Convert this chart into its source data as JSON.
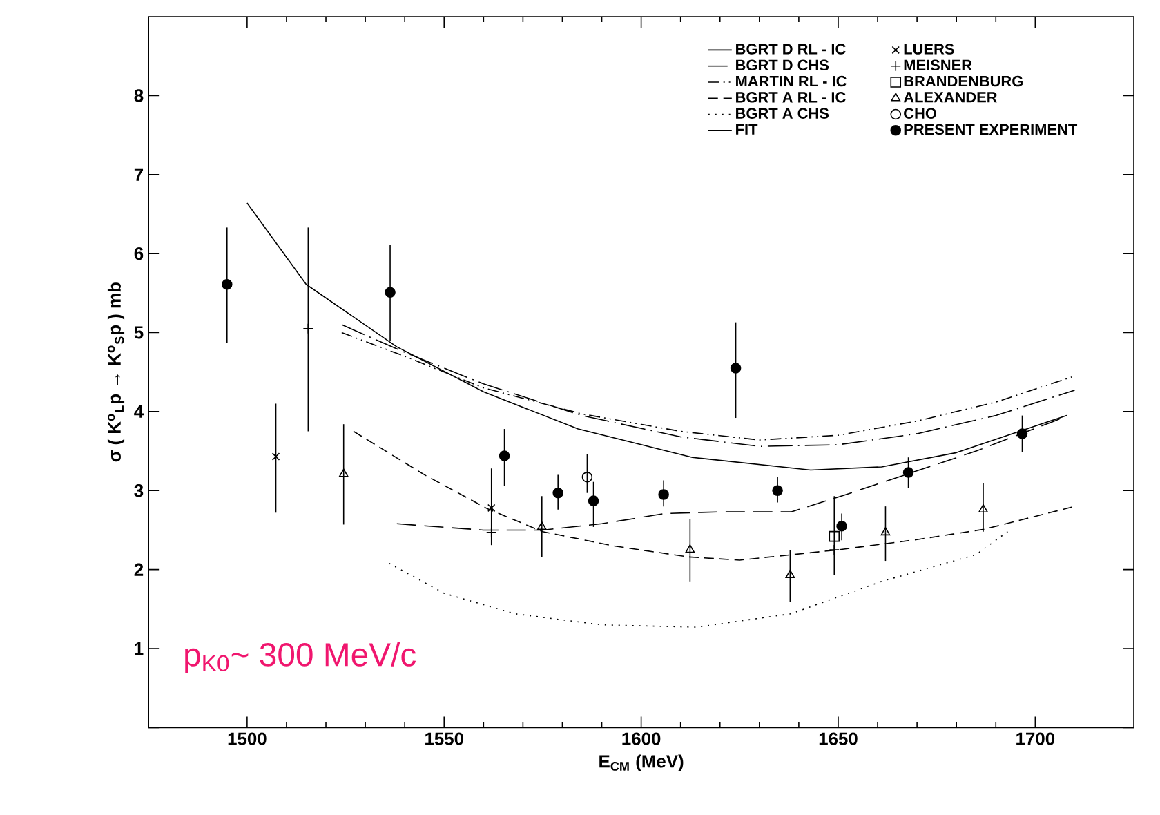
{
  "chart_data": {
    "type": "scatter",
    "xlabel": "E$_{CM}$ (MeV)",
    "ylabel": "σ ( K$^{o}$$_{L}$p → K$^{o}$$_{S}$p ) mb",
    "xlim": [
      1475,
      1725
    ],
    "ylim": [
      0,
      9
    ],
    "xticks": [
      1500,
      1550,
      1600,
      1650,
      1700
    ],
    "yticks": [
      {
        "value": 0,
        "label": null
      },
      1,
      2,
      3,
      4,
      5,
      6,
      7,
      8
    ],
    "legend": "top right",
    "grid": false,
    "annotations": [
      "p$_{K0}$~ 300 MeV/c"
    ],
    "series": [
      {
        "type": "line",
        "name": "BGRT  D   RL - IC",
        "color": "#000000",
        "line_style": "dashdot",
        "x": [
          1524,
          1540,
          1560,
          1585,
          1610,
          1630,
          1650,
          1670,
          1690,
          1710
        ],
        "values": [
          5.1,
          4.75,
          4.35,
          3.95,
          3.68,
          3.56,
          3.58,
          3.72,
          3.95,
          4.27
        ]
      },
      {
        "type": "line",
        "name": "BGRT  D   CHS",
        "color": "#000000",
        "line_style": "longdashed",
        "x": [
          1538,
          1560,
          1575,
          1590,
          1606,
          1620,
          1638,
          1652,
          1667,
          1685,
          1708
        ],
        "values": [
          2.58,
          2.5,
          2.5,
          2.58,
          2.71,
          2.73,
          2.73,
          2.95,
          3.2,
          3.5,
          3.94
        ]
      },
      {
        "type": "line",
        "name": "MARTIN    RL - IC",
        "color": "#000000",
        "line_style": "dashdotdot",
        "x": [
          1524,
          1540,
          1560,
          1585,
          1610,
          1630,
          1650,
          1670,
          1690,
          1710
        ],
        "values": [
          5.0,
          4.7,
          4.3,
          3.97,
          3.75,
          3.64,
          3.7,
          3.88,
          4.12,
          4.45
        ]
      },
      {
        "type": "line",
        "name": "BGRT  A   RL - IC",
        "color": "#000000",
        "line_style": "dashed",
        "x": [
          1527,
          1545,
          1561,
          1575,
          1593,
          1612,
          1625,
          1650,
          1670,
          1687,
          1710
        ],
        "values": [
          3.75,
          3.2,
          2.77,
          2.48,
          2.3,
          2.16,
          2.12,
          2.25,
          2.38,
          2.51,
          2.8
        ]
      },
      {
        "type": "line",
        "name": "BGRT  A   CHS",
        "color": "#000000",
        "line_style": "dotted",
        "x": [
          1536,
          1550,
          1568,
          1590,
          1614,
          1638,
          1661,
          1685,
          1693
        ],
        "values": [
          2.08,
          1.7,
          1.44,
          1.3,
          1.27,
          1.44,
          1.85,
          2.19,
          2.48
        ]
      },
      {
        "type": "line",
        "name": "FIT",
        "color": "#000000",
        "line_style": "solid",
        "x": [
          1500,
          1515,
          1538,
          1560,
          1584,
          1613,
          1643,
          1661,
          1680,
          1696,
          1708
        ],
        "values": [
          6.64,
          5.61,
          4.82,
          4.25,
          3.78,
          3.42,
          3.26,
          3.3,
          3.48,
          3.75,
          3.95
        ]
      },
      {
        "name": "LUERS",
        "color": "#000000",
        "marker": "cross",
        "x": [
          1507.3,
          1562
        ],
        "values": [
          3.43,
          2.78
        ],
        "errors": [
          [
            2.72,
            4.1
          ],
          [
            2.31,
            3.28
          ]
        ]
      },
      {
        "name": "MEISNER",
        "color": "#000000",
        "marker": "plus",
        "x": [
          1515.5,
          1562,
          1649
        ],
        "values": [
          5.05,
          2.47,
          2.25
        ],
        "errors": [
          [
            3.75,
            6.33
          ],
          null,
          [
            1.93,
            2.93
          ]
        ]
      },
      {
        "name": "BRANDENBURG",
        "color": "#000000",
        "marker": "square",
        "x": [
          1649
        ],
        "values": [
          2.42
        ]
      },
      {
        "name": "ALEXANDER",
        "color": "#000000",
        "marker": "triangle",
        "x": [
          1524.5,
          1574.8,
          1612.4,
          1637.8,
          1662,
          1686.8
        ],
        "values": [
          3.21,
          2.54,
          2.25,
          1.93,
          2.47,
          2.76
        ],
        "errors": [
          [
            2.57,
            3.84
          ],
          [
            2.16,
            2.93
          ],
          [
            1.85,
            2.64
          ],
          [
            1.59,
            2.25
          ],
          [
            2.11,
            2.8
          ],
          [
            2.48,
            3.09
          ]
        ]
      },
      {
        "name": "CHO",
        "color": "#000000",
        "marker": "circle",
        "x": [
          1586.3
        ],
        "values": [
          3.17
        ],
        "errors": [
          [
            2.97,
            3.46
          ]
        ]
      },
      {
        "name": "PRESENT   EXPERIMENT",
        "color": "#000000",
        "marker": "filled circle",
        "x": [
          1494.9,
          1536.3,
          1565.3,
          1578.9,
          1587.9,
          1605.7,
          1624,
          1634.6,
          1650.9,
          1667.8,
          1696.7
        ],
        "values": [
          5.61,
          5.51,
          3.44,
          2.97,
          2.87,
          2.95,
          4.55,
          3.0,
          2.55,
          3.23,
          3.72
        ],
        "errors": [
          [
            4.87,
            6.33
          ],
          [
            4.9,
            6.11
          ],
          [
            3.06,
            3.78
          ],
          [
            2.76,
            3.2
          ],
          [
            2.54,
            3.11
          ],
          [
            2.8,
            3.13
          ],
          [
            3.92,
            5.13
          ],
          [
            2.85,
            3.17
          ],
          [
            2.37,
            2.71
          ],
          [
            3.03,
            3.42
          ],
          [
            3.49,
            3.95
          ]
        ]
      }
    ]
  }
}
